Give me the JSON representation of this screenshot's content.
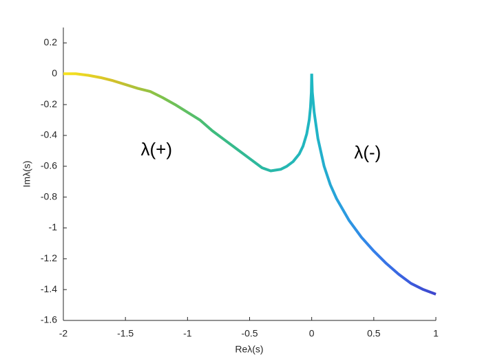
{
  "chart_data": {
    "type": "line",
    "xlabel": "Reλ(s)",
    "ylabel": "Imλ(s)",
    "xlim": [
      -2,
      1
    ],
    "ylim": [
      -1.6,
      0.3
    ],
    "xticks": [
      -2,
      -1.5,
      -1,
      -0.5,
      0,
      0.5,
      1
    ],
    "yticks": [
      -1.6,
      -1.4,
      -1.2,
      -1,
      -0.8,
      -0.6,
      -0.4,
      -0.2,
      0,
      0.2
    ],
    "grid": false,
    "series": [
      {
        "name": "λ(+)",
        "colors": [
          "#f9e51f",
          "#d3c02a",
          "#7ec24c",
          "#3fbc7c",
          "#2bb8a2",
          "#20b6c4"
        ],
        "x": [
          -2,
          -1.9,
          -1.8,
          -1.7,
          -1.6,
          -1.5,
          -1.4,
          -1.3,
          -1.2,
          -1.1,
          -1,
          -0.9,
          -0.8,
          -0.7,
          -0.6,
          -0.5,
          -0.4,
          -0.33,
          -0.25,
          -0.2,
          -0.15,
          -0.1,
          -0.07,
          -0.04,
          -0.02,
          -0.01,
          -0.003,
          0
        ],
        "values": [
          0,
          0,
          -0.01,
          -0.025,
          -0.045,
          -0.07,
          -0.095,
          -0.115,
          -0.155,
          -0.2,
          -0.25,
          -0.3,
          -0.37,
          -0.43,
          -0.49,
          -0.55,
          -0.61,
          -0.63,
          -0.62,
          -0.6,
          -0.57,
          -0.52,
          -0.47,
          -0.39,
          -0.3,
          -0.22,
          -0.12,
          0
        ],
        "label_x": -1.25,
        "label_y": -0.5
      },
      {
        "name": "λ(-)",
        "colors": [
          "#1fb8c2",
          "#2a9de0",
          "#3580ea",
          "#3b60df",
          "#3e45cc"
        ],
        "x": [
          0,
          0.005,
          0.02,
          0.05,
          0.1,
          0.15,
          0.2,
          0.3,
          0.4,
          0.5,
          0.6,
          0.7,
          0.8,
          0.9,
          1
        ],
        "values": [
          0,
          -0.12,
          -0.25,
          -0.42,
          -0.6,
          -0.72,
          -0.81,
          -0.95,
          -1.06,
          -1.15,
          -1.23,
          -1.3,
          -1.36,
          -1.4,
          -1.43
        ],
        "label_x": 0.45,
        "label_y": -0.52
      }
    ]
  }
}
